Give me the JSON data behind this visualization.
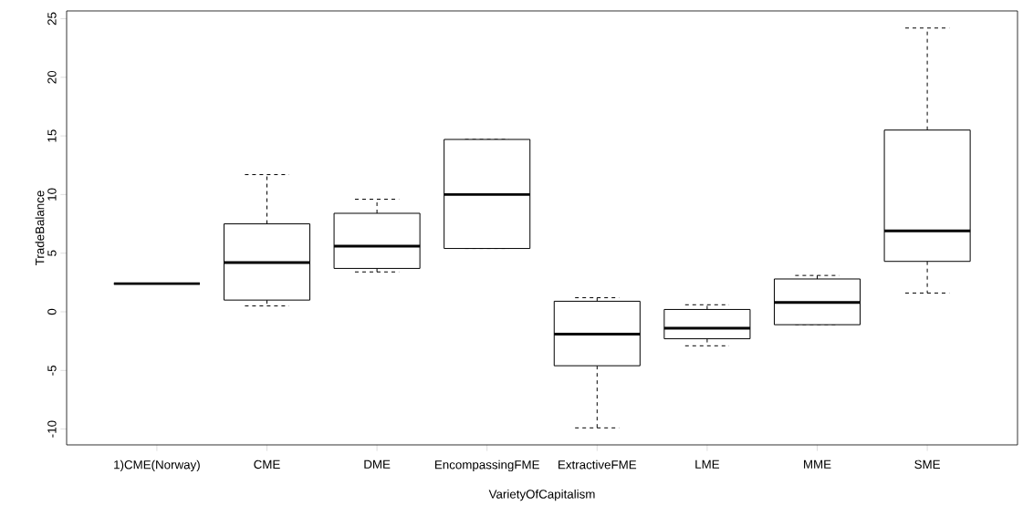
{
  "chart_data": {
    "type": "box",
    "xlabel": "VarietyOfCapitalism",
    "ylabel": "TradeBalance",
    "categories": [
      "1)CME(Norway)",
      "CME",
      "DME",
      "EncompassingFME",
      "ExtractiveFME",
      "LME",
      "MME",
      "SME"
    ],
    "boxes": [
      {
        "low": 2.4,
        "q1": 2.4,
        "median": 2.4,
        "q3": 2.4,
        "high": 2.4
      },
      {
        "low": 0.5,
        "q1": 1.0,
        "median": 4.2,
        "q3": 7.5,
        "high": 11.7
      },
      {
        "low": 3.4,
        "q1": 3.7,
        "median": 5.6,
        "q3": 8.4,
        "high": 9.6
      },
      {
        "low": 5.4,
        "q1": 5.4,
        "median": 10.0,
        "q3": 14.7,
        "high": 14.7
      },
      {
        "low": -9.9,
        "q1": -4.6,
        "median": -1.9,
        "q3": 0.9,
        "high": 1.2
      },
      {
        "low": -2.9,
        "q1": -2.3,
        "median": -1.4,
        "q3": 0.2,
        "high": 0.6
      },
      {
        "low": -1.1,
        "q1": -1.1,
        "median": 0.8,
        "q3": 2.8,
        "high": 3.1
      },
      {
        "low": 1.6,
        "q1": 4.3,
        "median": 6.9,
        "q3": 15.5,
        "high": 24.2
      }
    ],
    "ylim": [
      -11.35,
      25.66
    ],
    "yticks": [
      -10,
      -5,
      0,
      5,
      10,
      15,
      20,
      25
    ]
  }
}
